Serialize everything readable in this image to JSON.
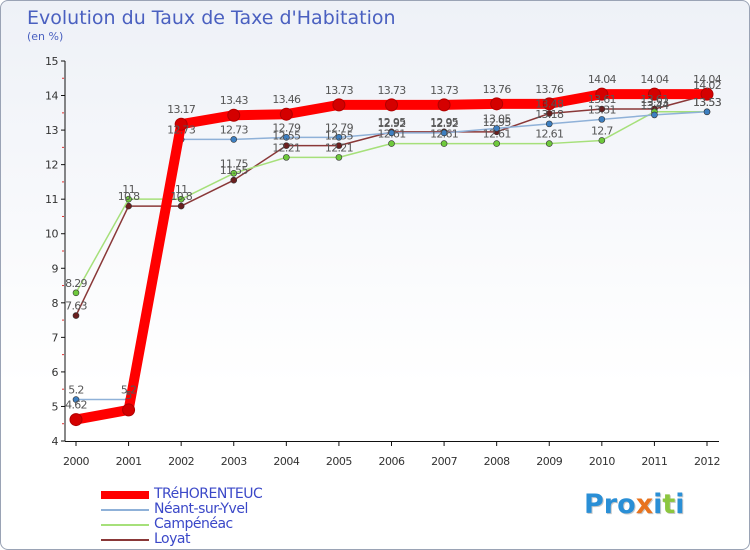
{
  "title": "Evolution du Taux de Taxe d'Habitation",
  "subtitle": "(en %)",
  "logo": {
    "letters": [
      "P",
      "r",
      "o",
      "x",
      "i",
      "t",
      "i"
    ],
    "colors": [
      "#2a8fd6",
      "#2a8fd6",
      "#2a8fd6",
      "#e8731e",
      "#2a8fd6",
      "#8cc63f",
      "#2a8fd6"
    ]
  },
  "chart_data": {
    "type": "line",
    "title": "Evolution du Taux de Taxe d'Habitation",
    "ylabel": "(en %)",
    "xlabel": "",
    "x": [
      "2000",
      "2001",
      "2002",
      "2003",
      "2004",
      "2005",
      "2006",
      "2007",
      "2008",
      "2009",
      "2010",
      "2011",
      "2012"
    ],
    "ylim": [
      4,
      15
    ],
    "yticks": [
      "4",
      "5",
      "6",
      "7",
      "8",
      "9",
      "10",
      "11",
      "12",
      "13",
      "14",
      "15"
    ],
    "grid": false,
    "legend_position": "bottom-left",
    "series": [
      {
        "name": "TRéHORENTEUC",
        "color": "#ff0000",
        "marker": "#d40000",
        "values": [
          4.62,
          4.9,
          13.17,
          13.43,
          13.46,
          13.73,
          13.73,
          13.73,
          13.76,
          13.76,
          14.04,
          14.04,
          14.04
        ],
        "labels": [
          "4.62",
          "5",
          "13.17",
          "13.43",
          "13.46",
          "13.73",
          "13.73",
          "13.73",
          "13.76",
          "13.76",
          "14.04",
          "14.04",
          "14.04"
        ]
      },
      {
        "name": "Néant-sur-Yvel",
        "color": "#8fb1d8",
        "marker": "#3d7fc1",
        "values": [
          5.2,
          5.2,
          12.73,
          12.73,
          12.79,
          12.79,
          12.92,
          12.92,
          13.05,
          13.18,
          13.31,
          13.44,
          13.53
        ],
        "labels": [
          "5.2",
          "5.2",
          "12.73",
          "12.73",
          "12.79",
          "12.79",
          "12.92",
          "12.92",
          "13.05",
          "13.18",
          "13.31",
          "13.44",
          "13.53"
        ]
      },
      {
        "name": "Campénéac",
        "color": "#a6e07a",
        "marker": "#6ec93c",
        "values": [
          8.29,
          11.0,
          11.0,
          11.75,
          12.21,
          12.21,
          12.61,
          12.61,
          12.61,
          12.61,
          12.7,
          13.53,
          13.53
        ],
        "labels": [
          "8.29",
          "11",
          "11",
          "11.75",
          "12.21",
          "12.21",
          "12.61",
          "12.61",
          "12.61",
          "12.61",
          "12.7",
          "13.53",
          "13.53"
        ]
      },
      {
        "name": "Loyat",
        "color": "#8a3838",
        "marker": "#6b1f1f",
        "values": [
          7.63,
          10.8,
          10.8,
          11.55,
          12.55,
          12.55,
          12.95,
          12.95,
          12.95,
          13.48,
          13.61,
          13.61,
          14.02
        ],
        "labels": [
          "7.63",
          "10.8",
          "10.8",
          "11.55",
          "12.55",
          "12.55",
          "12.95",
          "12.95",
          "12.95",
          "13.48",
          "13.61",
          "13.61",
          "14.02"
        ]
      }
    ]
  }
}
